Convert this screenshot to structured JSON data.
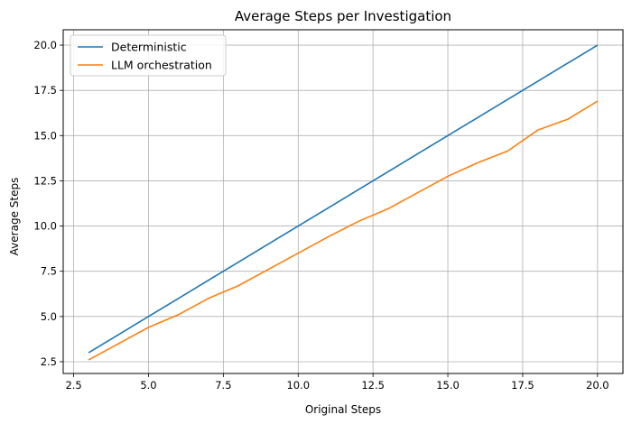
{
  "chart_data": {
    "type": "line",
    "title": "Average Steps per Investigation",
    "xlabel": "Original Steps",
    "ylabel": "Average Steps",
    "xlim": [
      2.15,
      20.85
    ],
    "ylim": [
      1.85,
      20.85
    ],
    "xticks": [
      2.5,
      5.0,
      7.5,
      10.0,
      12.5,
      15.0,
      17.5,
      20.0
    ],
    "yticks": [
      2.5,
      5.0,
      7.5,
      10.0,
      12.5,
      15.0,
      17.5,
      20.0
    ],
    "grid": true,
    "legend_position": "upper-left",
    "x": [
      3,
      4,
      5,
      6,
      7,
      8,
      9,
      10,
      11,
      12,
      13,
      14,
      15,
      16,
      17,
      18,
      19,
      20
    ],
    "series": [
      {
        "name": "Deterministic",
        "color": "#1f77b4",
        "values": [
          3,
          4,
          5,
          6,
          7,
          8,
          9,
          10,
          11,
          12,
          13,
          14,
          15,
          16,
          17,
          18,
          19,
          20
        ]
      },
      {
        "name": "LLM orchestration",
        "color": "#ff7f0e",
        "values": [
          2.6,
          3.5,
          4.4,
          5.1,
          6.0,
          6.7,
          7.6,
          8.5,
          9.4,
          10.25,
          10.95,
          11.85,
          12.75,
          13.5,
          14.15,
          15.3,
          15.9,
          16.9
        ]
      }
    ]
  }
}
